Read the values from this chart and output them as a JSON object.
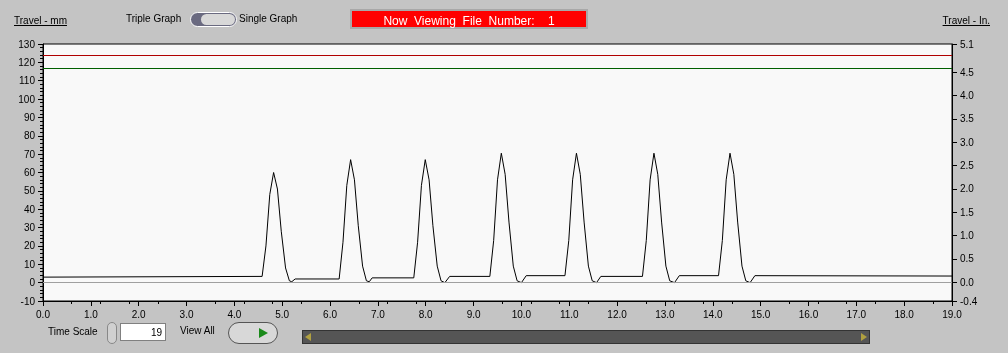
{
  "chart_data": {
    "type": "line",
    "ylabel": "Travel - mm",
    "y2label": "Travel - In.",
    "annotations": [
      "Triple Graph",
      "Single Graph",
      "Now  Viewing  File  Number:    1",
      "Time Scale",
      "19",
      "View All"
    ],
    "series": [
      {
        "color": "#000000",
        "x": [
          0,
          4.58,
          4.66,
          4.74,
          4.82,
          4.9,
          4.98,
          5.07,
          5.15,
          5.2,
          5.27,
          6.19,
          6.27,
          6.35,
          6.43,
          6.51,
          6.59,
          6.68,
          6.76,
          6.82,
          6.88,
          7.75,
          7.83,
          7.91,
          7.99,
          8.07,
          8.15,
          8.24,
          8.32,
          8.4,
          8.5,
          9.34,
          9.42,
          9.5,
          9.58,
          9.66,
          9.74,
          9.83,
          9.91,
          10.0,
          10.1,
          10.91,
          10.99,
          11.07,
          11.15,
          11.23,
          11.31,
          11.4,
          11.48,
          11.57,
          11.66,
          12.53,
          12.61,
          12.69,
          12.77,
          12.85,
          12.93,
          13.02,
          13.1,
          13.2,
          13.3,
          14.12,
          14.2,
          14.28,
          14.36,
          14.44,
          14.52,
          14.61,
          14.69,
          14.78,
          14.88,
          19.0
        ],
        "values": [
          3,
          3.4,
          20,
          48,
          60,
          51,
          28,
          8,
          1,
          0.5,
          2,
          2,
          22,
          53,
          67,
          56,
          31,
          9,
          1,
          0.5,
          2.6,
          2.6,
          22,
          53,
          67,
          56,
          31,
          9,
          1,
          0,
          3.4,
          3.4,
          23,
          56,
          70.5,
          59,
          33,
          9,
          1,
          0,
          3.8,
          3.8,
          23,
          56,
          70.5,
          59,
          33,
          9,
          1,
          0,
          3.4,
          3.4,
          23,
          56,
          70.5,
          59,
          33,
          9,
          1,
          0,
          3.8,
          3.8,
          23,
          56,
          70.5,
          59,
          33,
          9,
          1,
          0,
          3.8,
          3.6
        ]
      }
    ],
    "xlim": [
      0,
      19
    ],
    "xticks": [
      {
        "value": 0,
        "label": "0.0"
      },
      {
        "value": 1,
        "label": "1.0"
      },
      {
        "value": 2,
        "label": "2.0"
      },
      {
        "value": 3,
        "label": "3.0"
      },
      {
        "value": 4,
        "label": "4.0"
      },
      {
        "value": 5,
        "label": "5.0"
      },
      {
        "value": 6,
        "label": "6.0"
      },
      {
        "value": 7,
        "label": "7.0"
      },
      {
        "value": 8,
        "label": "8.0"
      },
      {
        "value": 9,
        "label": "9.0"
      },
      {
        "value": 10,
        "label": "10.0"
      },
      {
        "value": 11,
        "label": "11.0"
      },
      {
        "value": 12,
        "label": "12.0"
      },
      {
        "value": 13,
        "label": "13.0"
      },
      {
        "value": 14,
        "label": "14.0"
      },
      {
        "value": 15,
        "label": "15.0"
      },
      {
        "value": 16,
        "label": "16.0"
      },
      {
        "value": 17,
        "label": "17.0"
      },
      {
        "value": 18,
        "label": "18.0"
      },
      {
        "value": 19,
        "label": "19.0"
      }
    ],
    "ylim": [
      -10,
      130
    ],
    "yticks": [
      -10,
      0,
      10,
      20,
      30,
      40,
      50,
      60,
      70,
      80,
      90,
      100,
      110,
      120,
      130
    ],
    "y2lim": [
      -0.4,
      5.1
    ],
    "y2ticks": [
      -0.4,
      {
        "value": 0,
        "label": "0.0"
      },
      0.5,
      {
        "value": 1,
        "label": "1.0"
      },
      1.5,
      {
        "value": 2,
        "label": "2.0"
      },
      2.5,
      {
        "value": 3,
        "label": "3.0"
      },
      3.5,
      {
        "value": 4,
        "label": "4.0"
      },
      4.5,
      5.1
    ],
    "ref_lines": [
      {
        "axis": "y",
        "value": 124,
        "color": "#b00000"
      },
      {
        "axis": "y",
        "value": 117,
        "color": "#006000"
      },
      {
        "axis": "y",
        "value": 0,
        "color": "#a0a0a0"
      }
    ],
    "grid": false,
    "marker": "none"
  }
}
